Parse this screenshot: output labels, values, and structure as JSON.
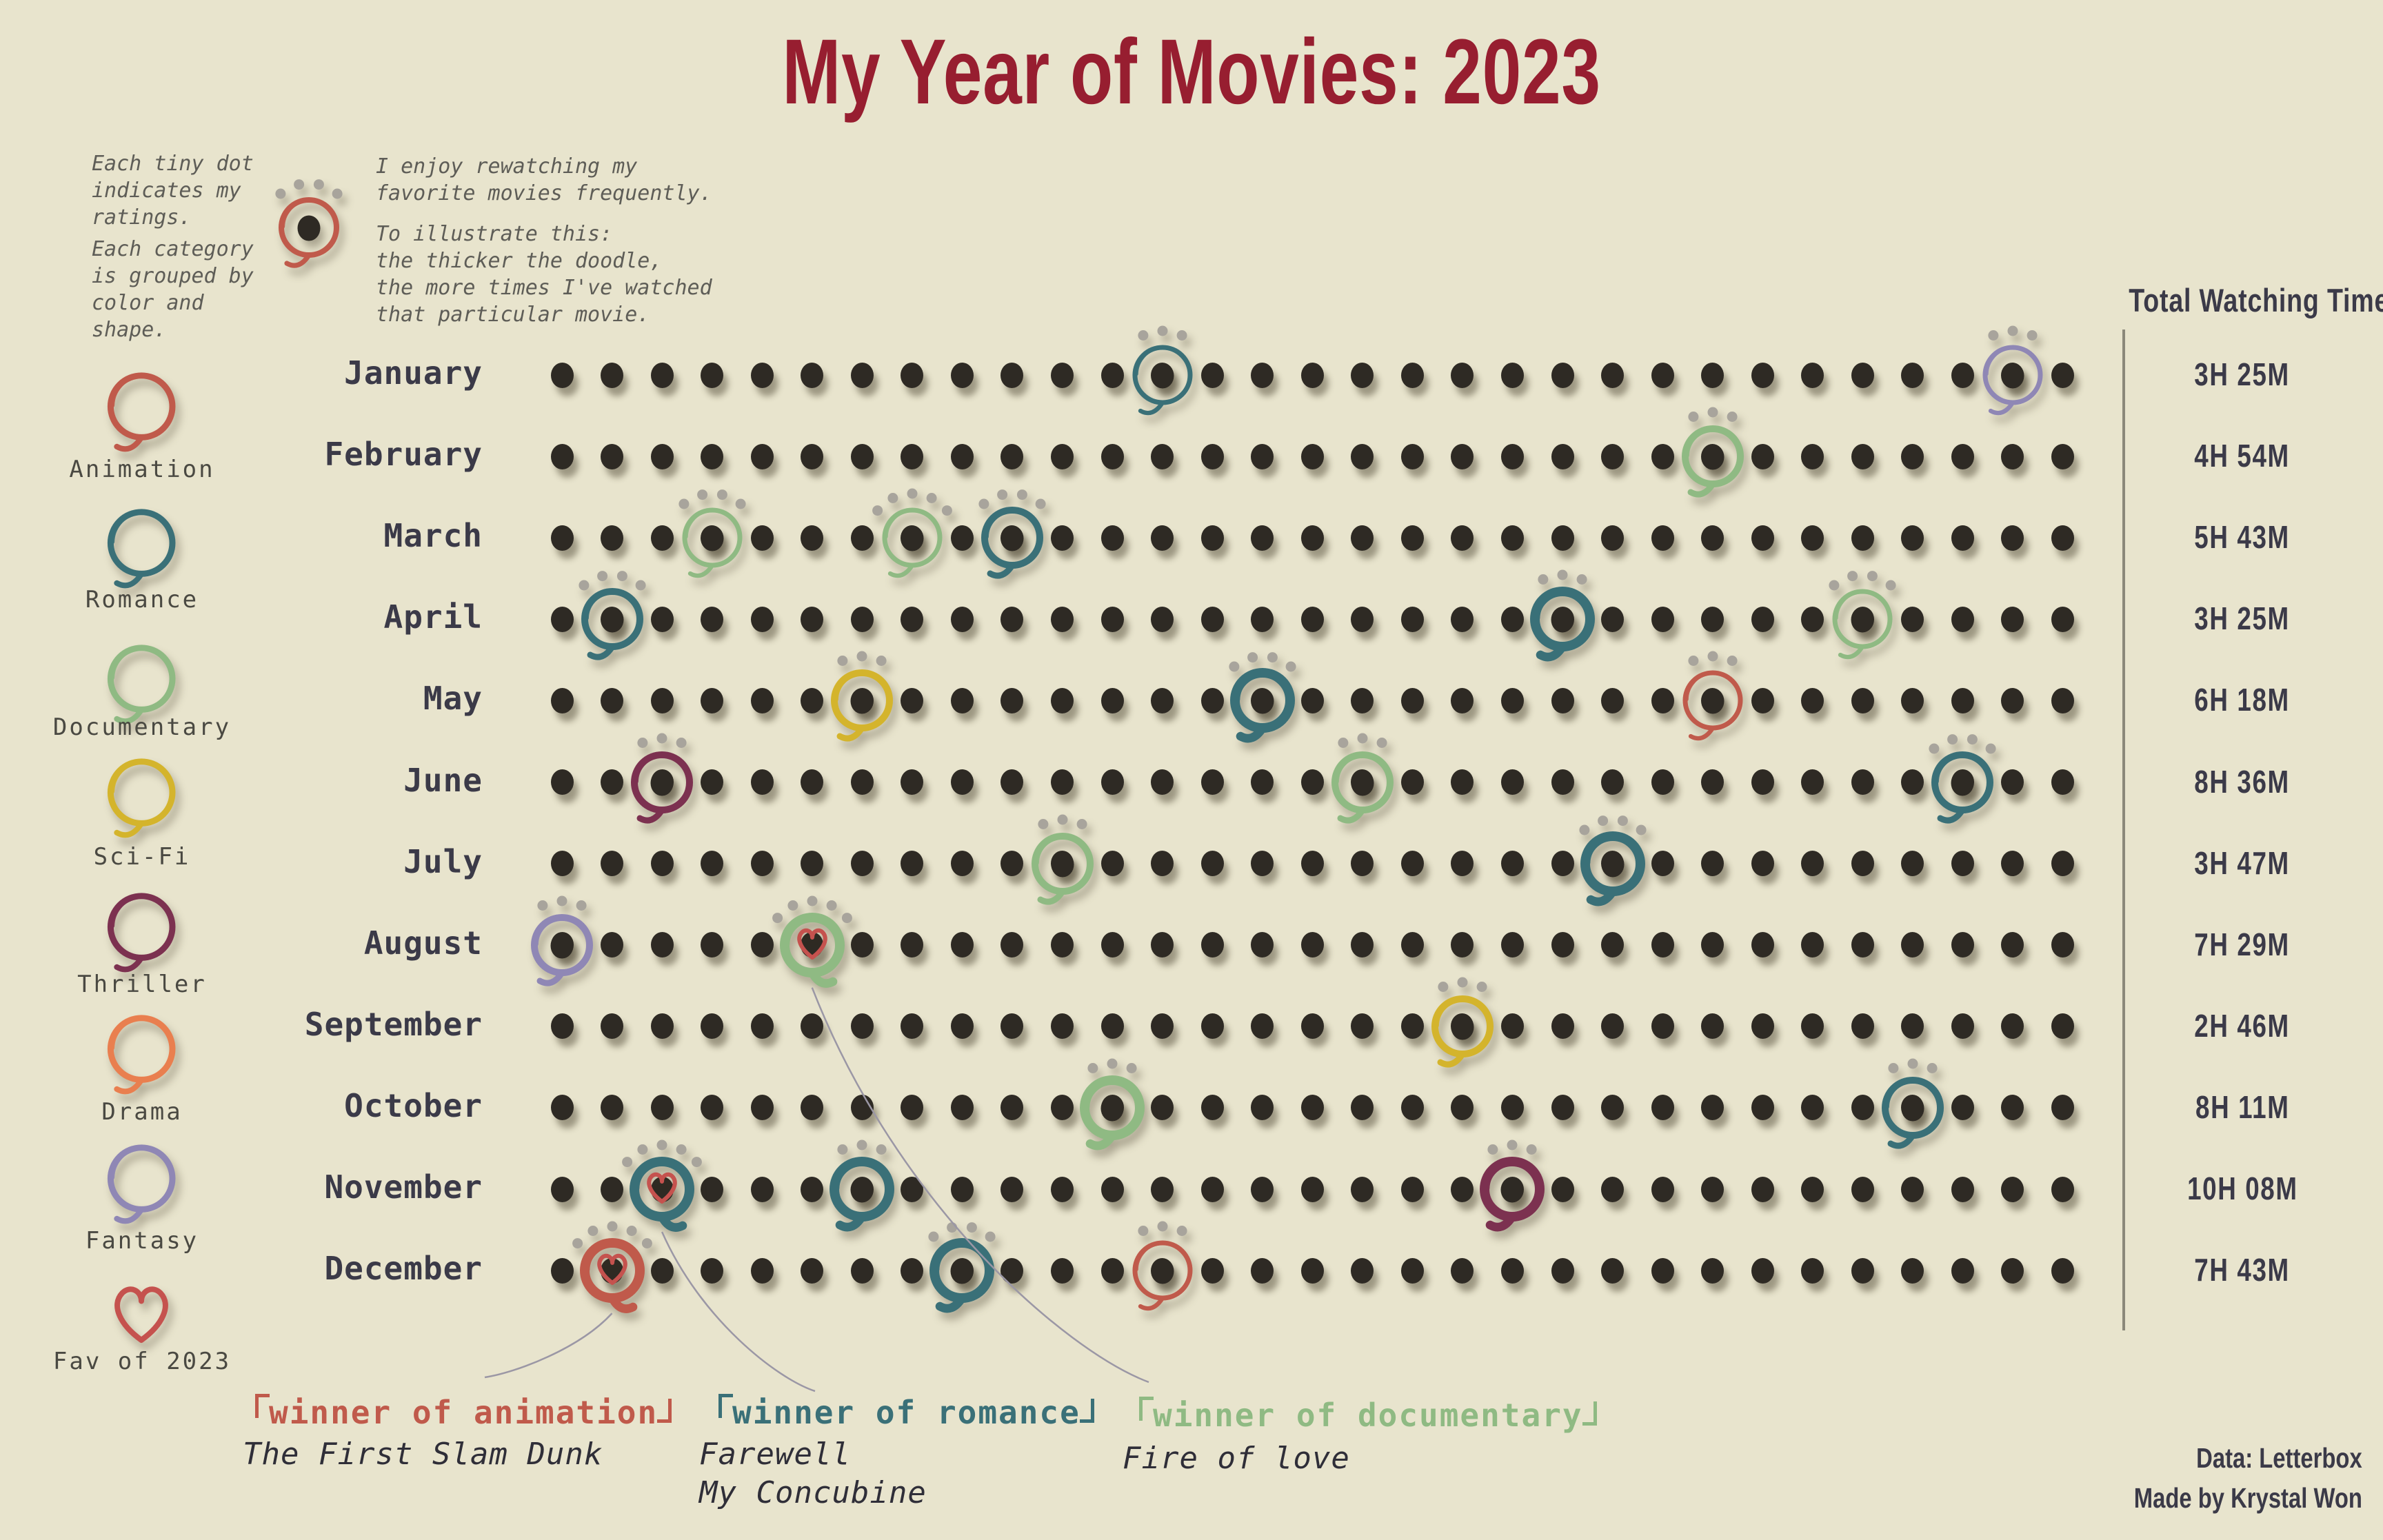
{
  "title": "My Year of Movies: 2023",
  "colors": {
    "background": "#E8E4CD",
    "title": "#971E30",
    "day_dot": "#2E2A24",
    "rating_dot": "#A8A49C",
    "muted_text": "#5E5D57",
    "label_text": "#3B3A48",
    "connector": "#9B97A5",
    "heart": "#C5524E"
  },
  "intro": {
    "ratings_note": [
      "Each tiny dot",
      "indicates my",
      "ratings."
    ],
    "grouping_note": [
      "Each category",
      "is grouped by",
      "color and",
      "shape."
    ],
    "rewatch_note_1": [
      "I enjoy rewatching my",
      "favorite movies frequently."
    ],
    "rewatch_note_2": [
      "To illustrate this:",
      "the thicker the doodle,",
      "the more times I've watched",
      "that particular movie."
    ],
    "example_rating": 4,
    "example_category": "Animation"
  },
  "legend": {
    "categories": [
      {
        "label": "Animation",
        "color": "#C05A4B"
      },
      {
        "label": "Romance",
        "color": "#3A7078"
      },
      {
        "label": "Documentary",
        "color": "#8FBA83"
      },
      {
        "label": "Sci-Fi",
        "color": "#D4B42C"
      },
      {
        "label": "Thriller",
        "color": "#7C3150"
      },
      {
        "label": "Drama",
        "color": "#E97F4F"
      },
      {
        "label": "Fantasy",
        "color": "#8F87B5"
      }
    ],
    "fav": {
      "label": "Fav of 2023",
      "color": "#C5524E"
    }
  },
  "time_column": {
    "header": "Total Watching Time"
  },
  "chart_data": {
    "type": "dot-calendar",
    "title": "My Year of Movies: 2023",
    "dots_per_row": 31,
    "legend_position": "left",
    "months": [
      {
        "name": "January",
        "total_watching_time": "3H 25M",
        "movies": [
          {
            "day": 13,
            "category": "Romance",
            "rating": 3,
            "watch_weight": 1
          },
          {
            "day": 30,
            "category": "Fantasy",
            "rating": 3,
            "watch_weight": 1
          }
        ]
      },
      {
        "name": "February",
        "total_watching_time": "4H 54M",
        "movies": [
          {
            "day": 24,
            "category": "Documentary",
            "rating": 3,
            "watch_weight": 2
          }
        ]
      },
      {
        "name": "March",
        "total_watching_time": "5H 43M",
        "movies": [
          {
            "day": 4,
            "category": "Documentary",
            "rating": 4,
            "watch_weight": 1
          },
          {
            "day": 8,
            "category": "Documentary",
            "rating": 5,
            "watch_weight": 1
          },
          {
            "day": 10,
            "category": "Romance",
            "rating": 4,
            "watch_weight": 2
          }
        ]
      },
      {
        "name": "April",
        "total_watching_time": "3H 25M",
        "movies": [
          {
            "day": 2,
            "category": "Romance",
            "rating": 4,
            "watch_weight": 2
          },
          {
            "day": 21,
            "category": "Romance",
            "rating": 3,
            "watch_weight": 3
          },
          {
            "day": 27,
            "category": "Documentary",
            "rating": 4,
            "watch_weight": 1
          }
        ]
      },
      {
        "name": "May",
        "total_watching_time": "6H 18M",
        "movies": [
          {
            "day": 7,
            "category": "Sci-Fi",
            "rating": 3,
            "watch_weight": 2
          },
          {
            "day": 15,
            "category": "Romance",
            "rating": 4,
            "watch_weight": 3
          },
          {
            "day": 24,
            "category": "Animation",
            "rating": 3,
            "watch_weight": 1
          }
        ]
      },
      {
        "name": "June",
        "total_watching_time": "8H 36M",
        "movies": [
          {
            "day": 3,
            "category": "Thriller",
            "rating": 3,
            "watch_weight": 2
          },
          {
            "day": 17,
            "category": "Documentary",
            "rating": 3,
            "watch_weight": 2
          },
          {
            "day": 29,
            "category": "Romance",
            "rating": 4,
            "watch_weight": 2
          }
        ]
      },
      {
        "name": "July",
        "total_watching_time": "3H 47M",
        "movies": [
          {
            "day": 11,
            "category": "Documentary",
            "rating": 3,
            "watch_weight": 2
          },
          {
            "day": 22,
            "category": "Romance",
            "rating": 4,
            "watch_weight": 3
          }
        ]
      },
      {
        "name": "August",
        "total_watching_time": "7H 29M",
        "movies": [
          {
            "day": 1,
            "category": "Fantasy",
            "rating": 3,
            "watch_weight": 2
          },
          {
            "day": 6,
            "category": "Documentary",
            "rating": 5,
            "watch_weight": 3,
            "fav": true
          }
        ]
      },
      {
        "name": "September",
        "total_watching_time": "2H 46M",
        "movies": [
          {
            "day": 19,
            "category": "Sci-Fi",
            "rating": 3,
            "watch_weight": 2
          }
        ]
      },
      {
        "name": "October",
        "total_watching_time": "8H 11M",
        "movies": [
          {
            "day": 12,
            "category": "Documentary",
            "rating": 3,
            "watch_weight": 3
          },
          {
            "day": 28,
            "category": "Romance",
            "rating": 3,
            "watch_weight": 2
          }
        ]
      },
      {
        "name": "November",
        "total_watching_time": "10H 08M",
        "movies": [
          {
            "day": 3,
            "category": "Romance",
            "rating": 5,
            "watch_weight": 3,
            "fav": true
          },
          {
            "day": 7,
            "category": "Romance",
            "rating": 3,
            "watch_weight": 3
          },
          {
            "day": 20,
            "category": "Thriller",
            "rating": 3,
            "watch_weight": 3
          }
        ]
      },
      {
        "name": "December",
        "total_watching_time": "7H 43M",
        "movies": [
          {
            "day": 2,
            "category": "Animation",
            "rating": 5,
            "watch_weight": 3,
            "fav": true
          },
          {
            "day": 9,
            "category": "Romance",
            "rating": 4,
            "watch_weight": 3
          },
          {
            "day": 13,
            "category": "Animation",
            "rating": 3,
            "watch_weight": 1
          }
        ]
      }
    ]
  },
  "winners": [
    {
      "tag": "「winner of animation」",
      "movie_title": "The First Slam Dunk",
      "category": "Animation",
      "month": "December",
      "day": 2
    },
    {
      "tag": "「winner of romance」",
      "movie_title": "Farewell\nMy Concubine",
      "category": "Romance",
      "month": "November",
      "day": 3
    },
    {
      "tag": "「winner of documentary」",
      "movie_title": "Fire of love",
      "category": "Documentary",
      "month": "August",
      "day": 6
    }
  ],
  "credits": [
    "Data: Letterbox",
    "Made by Krystal Won"
  ]
}
